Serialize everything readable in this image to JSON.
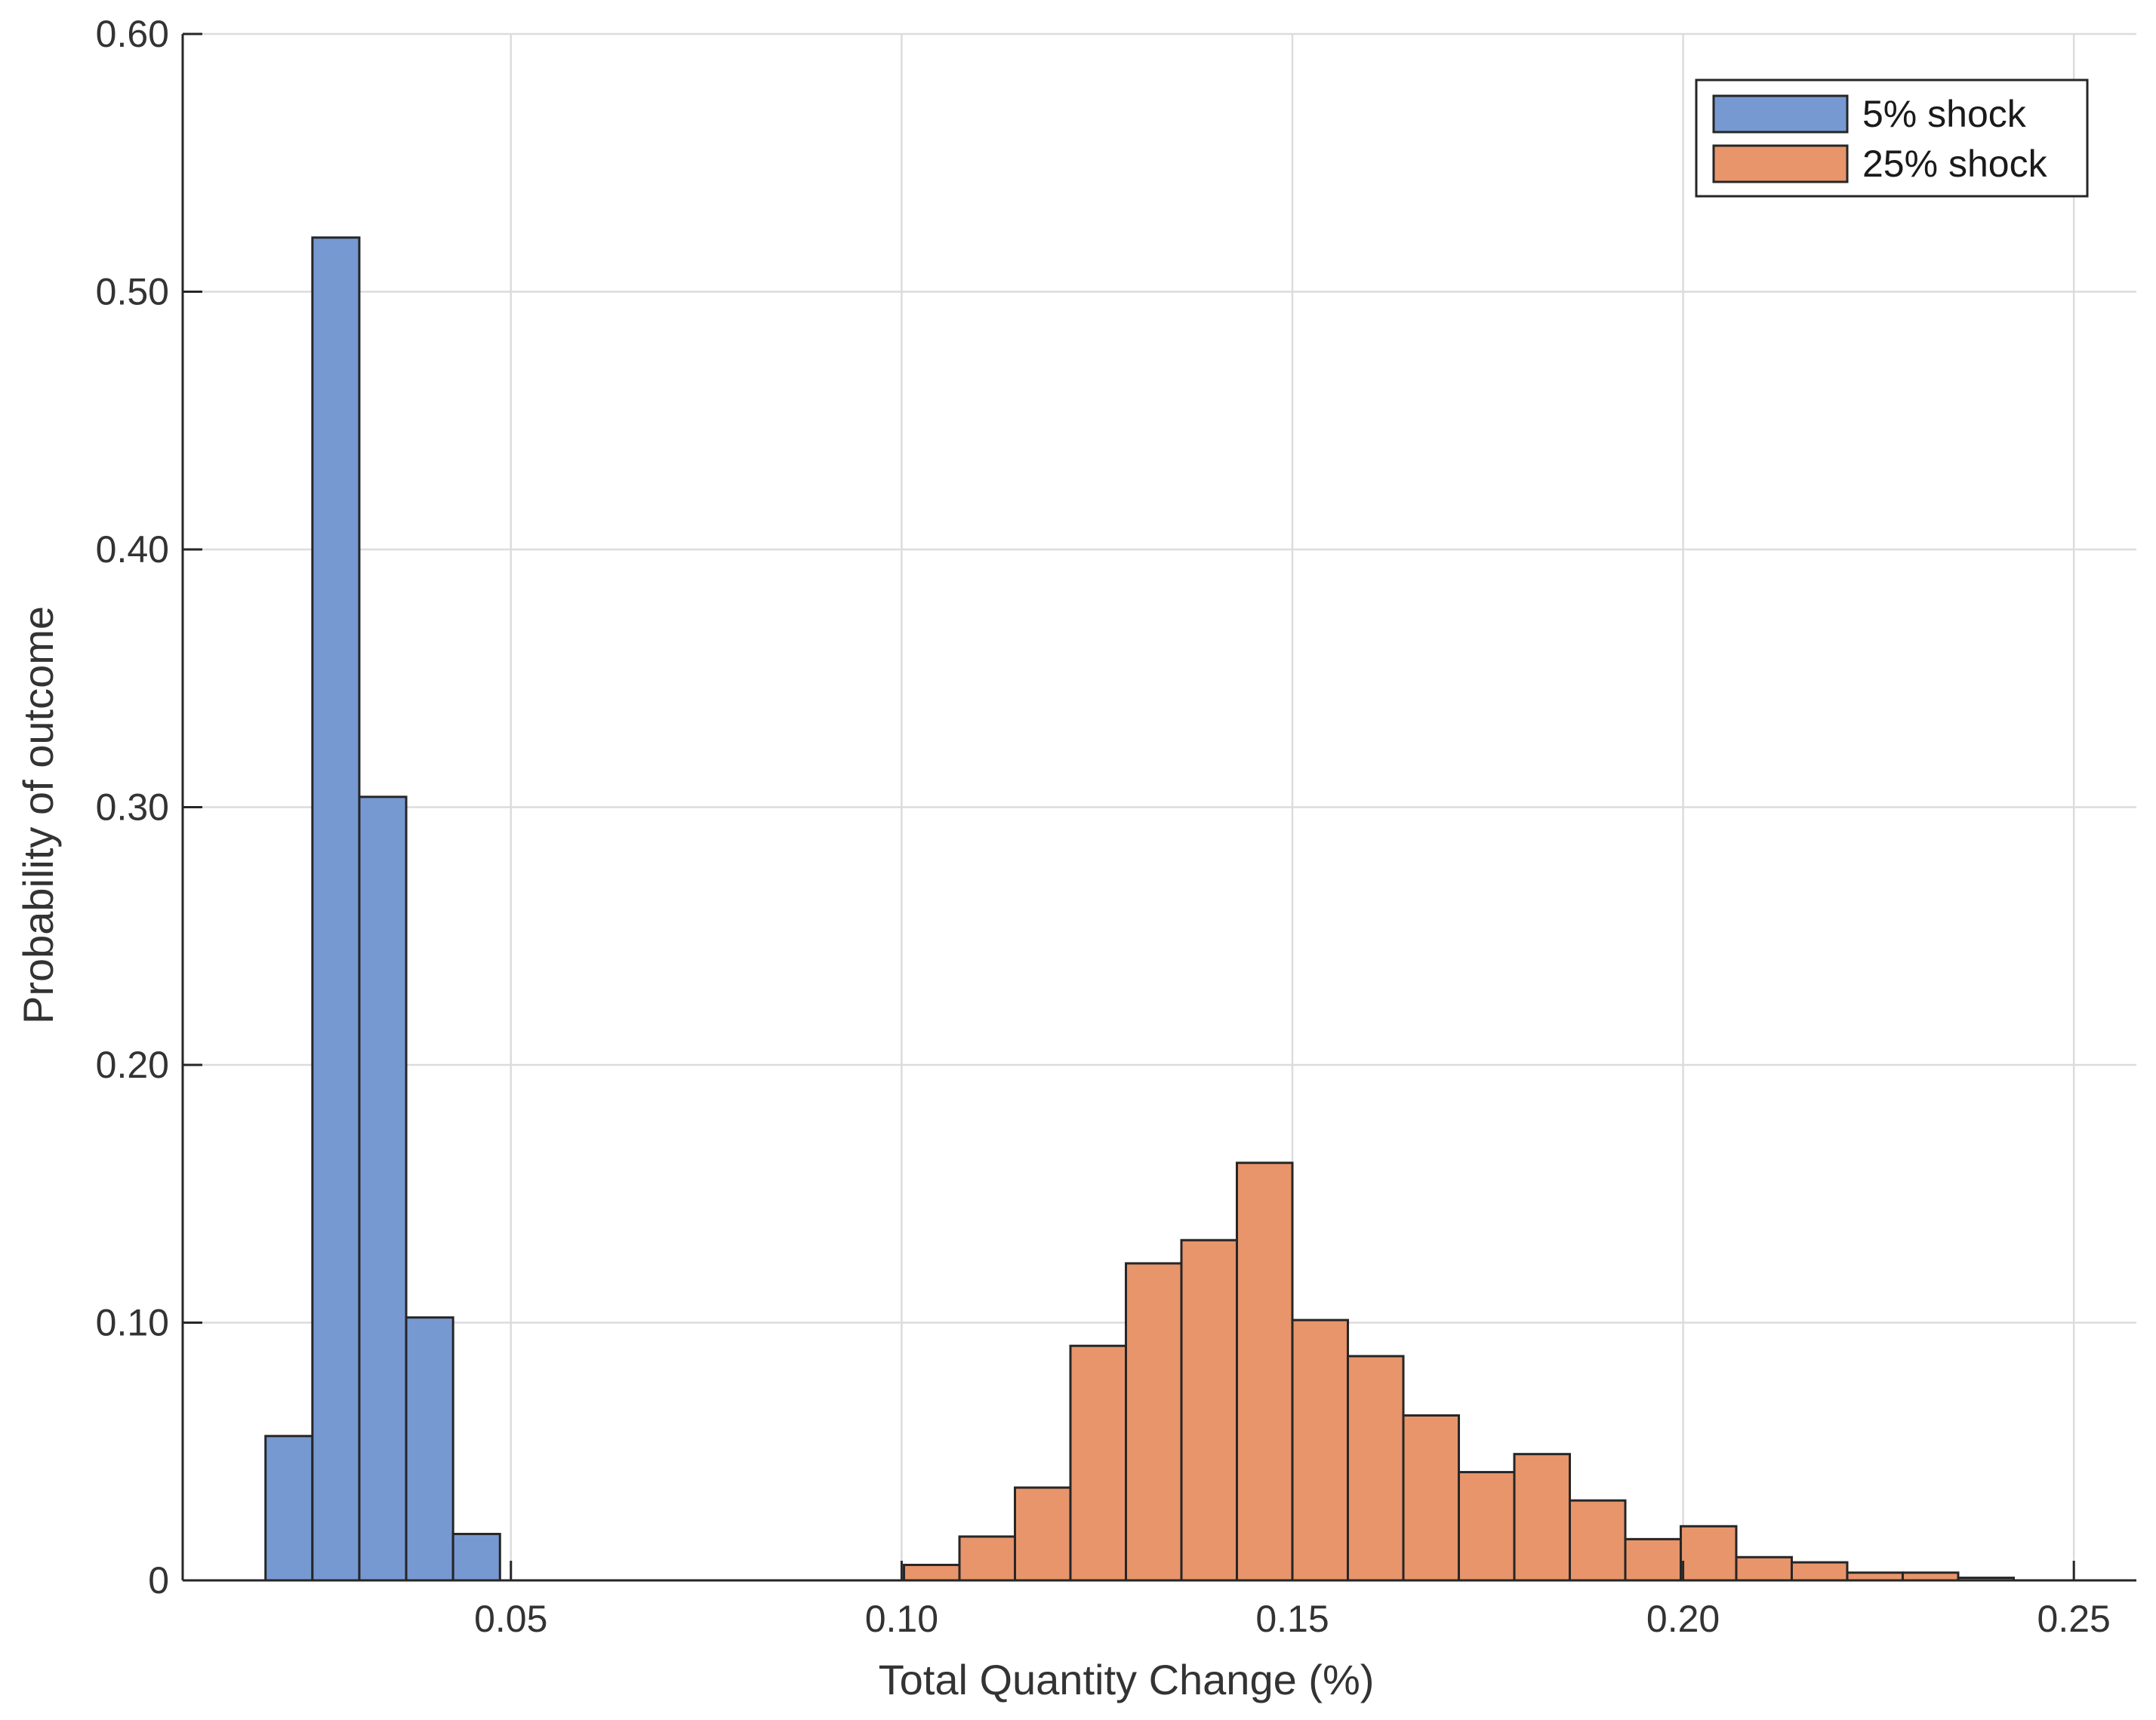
{
  "chart_data": {
    "type": "bar",
    "subtype": "histogram",
    "title": "",
    "xlabel": "Total Quantity Change (%)",
    "ylabel": "Probability of outcome",
    "xlim": [
      0.008,
      0.258
    ],
    "ylim": [
      0,
      0.6
    ],
    "xticks": [
      0.05,
      0.1,
      0.15,
      0.2,
      0.25
    ],
    "xtick_labels": [
      "0.05",
      "0.10",
      "0.15",
      "0.20",
      "0.25"
    ],
    "yticks": [
      0,
      0.1,
      0.2,
      0.3,
      0.4,
      0.5,
      0.6
    ],
    "ytick_labels": [
      "0",
      "0.10",
      "0.20",
      "0.30",
      "0.40",
      "0.50",
      "0.60"
    ],
    "grid": true,
    "legend_position": "top-right",
    "series": [
      {
        "name": "5% shock",
        "color": "#7799d2",
        "bin_edges": [
          0.0186,
          0.0246,
          0.0306,
          0.0366,
          0.0426,
          0.0486
        ],
        "values": [
          0.056,
          0.521,
          0.304,
          0.102,
          0.018
        ]
      },
      {
        "name": "25% shock",
        "color": "#e8956b",
        "bin_edges": [
          0.1003,
          0.1074,
          0.1145,
          0.1216,
          0.1287,
          0.1358,
          0.1429,
          0.15,
          0.1571,
          0.1642,
          0.1713,
          0.1784,
          0.1855,
          0.1926,
          0.1997,
          0.2068,
          0.2139,
          0.221,
          0.2281,
          0.2352,
          0.2423
        ],
        "values": [
          0.006,
          0.017,
          0.036,
          0.091,
          0.123,
          0.132,
          0.162,
          0.101,
          0.087,
          0.064,
          0.042,
          0.049,
          0.031,
          0.016,
          0.021,
          0.009,
          0.007,
          0.003,
          0.003,
          0.001
        ]
      }
    ]
  }
}
